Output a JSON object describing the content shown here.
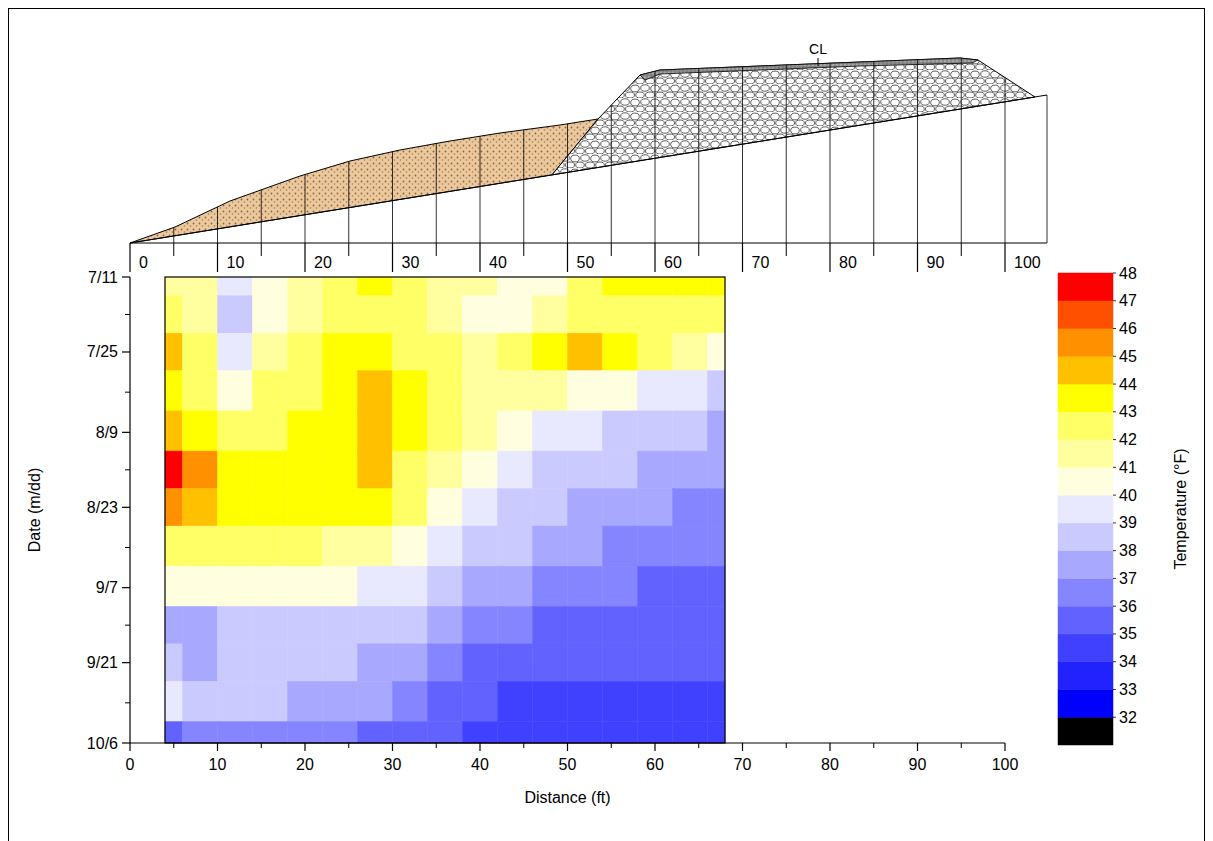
{
  "chart_data": {
    "type": "heatmap",
    "x_label": "Distance (ft)",
    "y_label": "Date (m/dd)",
    "annotations": [
      "CL"
    ],
    "xlim": [
      0,
      100
    ],
    "xticks": [
      0,
      10,
      20,
      30,
      40,
      50,
      60,
      70,
      80,
      90,
      100
    ],
    "ylim": [
      0,
      87
    ],
    "yticks": [
      {
        "value": 0,
        "label": "7/11"
      },
      {
        "value": 14,
        "label": "7/25"
      },
      {
        "value": 29,
        "label": "8/9"
      },
      {
        "value": 43,
        "label": "8/23"
      },
      {
        "value": 58,
        "label": "9/7"
      },
      {
        "value": 72,
        "label": "9/21"
      },
      {
        "value": 87,
        "label": "10/6"
      }
    ],
    "x": [
      4,
      8,
      12,
      16,
      20,
      24,
      28,
      32,
      36,
      40,
      44,
      48,
      52,
      56,
      60,
      64,
      68
    ],
    "y": [
      0,
      7,
      14,
      21,
      29,
      36,
      43,
      50,
      58,
      65,
      72,
      79,
      87
    ],
    "values": [
      [
        41.5,
        41.5,
        39,
        40,
        41,
        42,
        43,
        42,
        41,
        41,
        40,
        40.5,
        42,
        43,
        43,
        43,
        43
      ],
      [
        42,
        41,
        38.5,
        40,
        41,
        42,
        42.5,
        42,
        41,
        40.5,
        40.5,
        41.5,
        42,
        42.5,
        42,
        42,
        42
      ],
      [
        44,
        42,
        39.5,
        41,
        42,
        43,
        43,
        42.5,
        42,
        41.5,
        42,
        43,
        44,
        43.5,
        42,
        41,
        40
      ],
      [
        43,
        42,
        40.5,
        42,
        42.5,
        43,
        44,
        43,
        42,
        41.5,
        41.5,
        41,
        40.5,
        40,
        39.5,
        39,
        38.5
      ],
      [
        44.5,
        43,
        42,
        42.5,
        43,
        43.5,
        44,
        43,
        42,
        41,
        40,
        39.5,
        39,
        38.5,
        38,
        38,
        37.5
      ],
      [
        47,
        45,
        43.5,
        43,
        43,
        43.5,
        44,
        42.5,
        41.5,
        40,
        39.5,
        38.5,
        38,
        38,
        37.5,
        37,
        37
      ],
      [
        45.5,
        44,
        43.5,
        43,
        43,
        43,
        43,
        42,
        40.5,
        39.5,
        38.5,
        38,
        37.5,
        37,
        37,
        36.5,
        36.5
      ],
      [
        42.5,
        42.5,
        42.5,
        42.5,
        42,
        41.5,
        41,
        40,
        39.5,
        38.5,
        38,
        37.5,
        37,
        36.5,
        36.5,
        36,
        36
      ],
      [
        40.5,
        40.5,
        40.5,
        40.5,
        40,
        40,
        39.5,
        39,
        38.5,
        37.5,
        37,
        36.5,
        36,
        36,
        35.5,
        35.5,
        35.5
      ],
      [
        37.5,
        37.5,
        38,
        38.5,
        38.5,
        38.5,
        38.5,
        38,
        37.5,
        36.5,
        36,
        35.5,
        35.5,
        35.5,
        35.5,
        35,
        35
      ],
      [
        38.5,
        37.5,
        38,
        38,
        38,
        38,
        37.5,
        37,
        36.5,
        35.5,
        35,
        35,
        35,
        35,
        35,
        35,
        35
      ],
      [
        39.5,
        38.5,
        38,
        38,
        37.5,
        37.5,
        37,
        36.5,
        35.5,
        35,
        34.5,
        34.5,
        34.5,
        34.5,
        34.5,
        34.5,
        34.5
      ],
      [
        35.5,
        36,
        36,
        36,
        36,
        36,
        35.5,
        35.5,
        35,
        34.5,
        34.5,
        34.5,
        34.5,
        34.5,
        34.5,
        34.5,
        34.5
      ]
    ],
    "colorbar": {
      "label": "Temperature (°F)",
      "range": [
        31,
        48
      ],
      "ticks": [
        32,
        33,
        34,
        35,
        36,
        37,
        38,
        39,
        40,
        41,
        42,
        43,
        44,
        45,
        46,
        47,
        48
      ],
      "colors": [
        "#000000",
        "#0000ff",
        "#2222ff",
        "#4040ff",
        "#6262ff",
        "#8585ff",
        "#a8a8ff",
        "#cacaff",
        "#e8e8ff",
        "#ffffe0",
        "#ffffa0",
        "#ffff66",
        "#ffff00",
        "#ffc000",
        "#ff9000",
        "#ff5000",
        "#ff0000"
      ]
    }
  }
}
